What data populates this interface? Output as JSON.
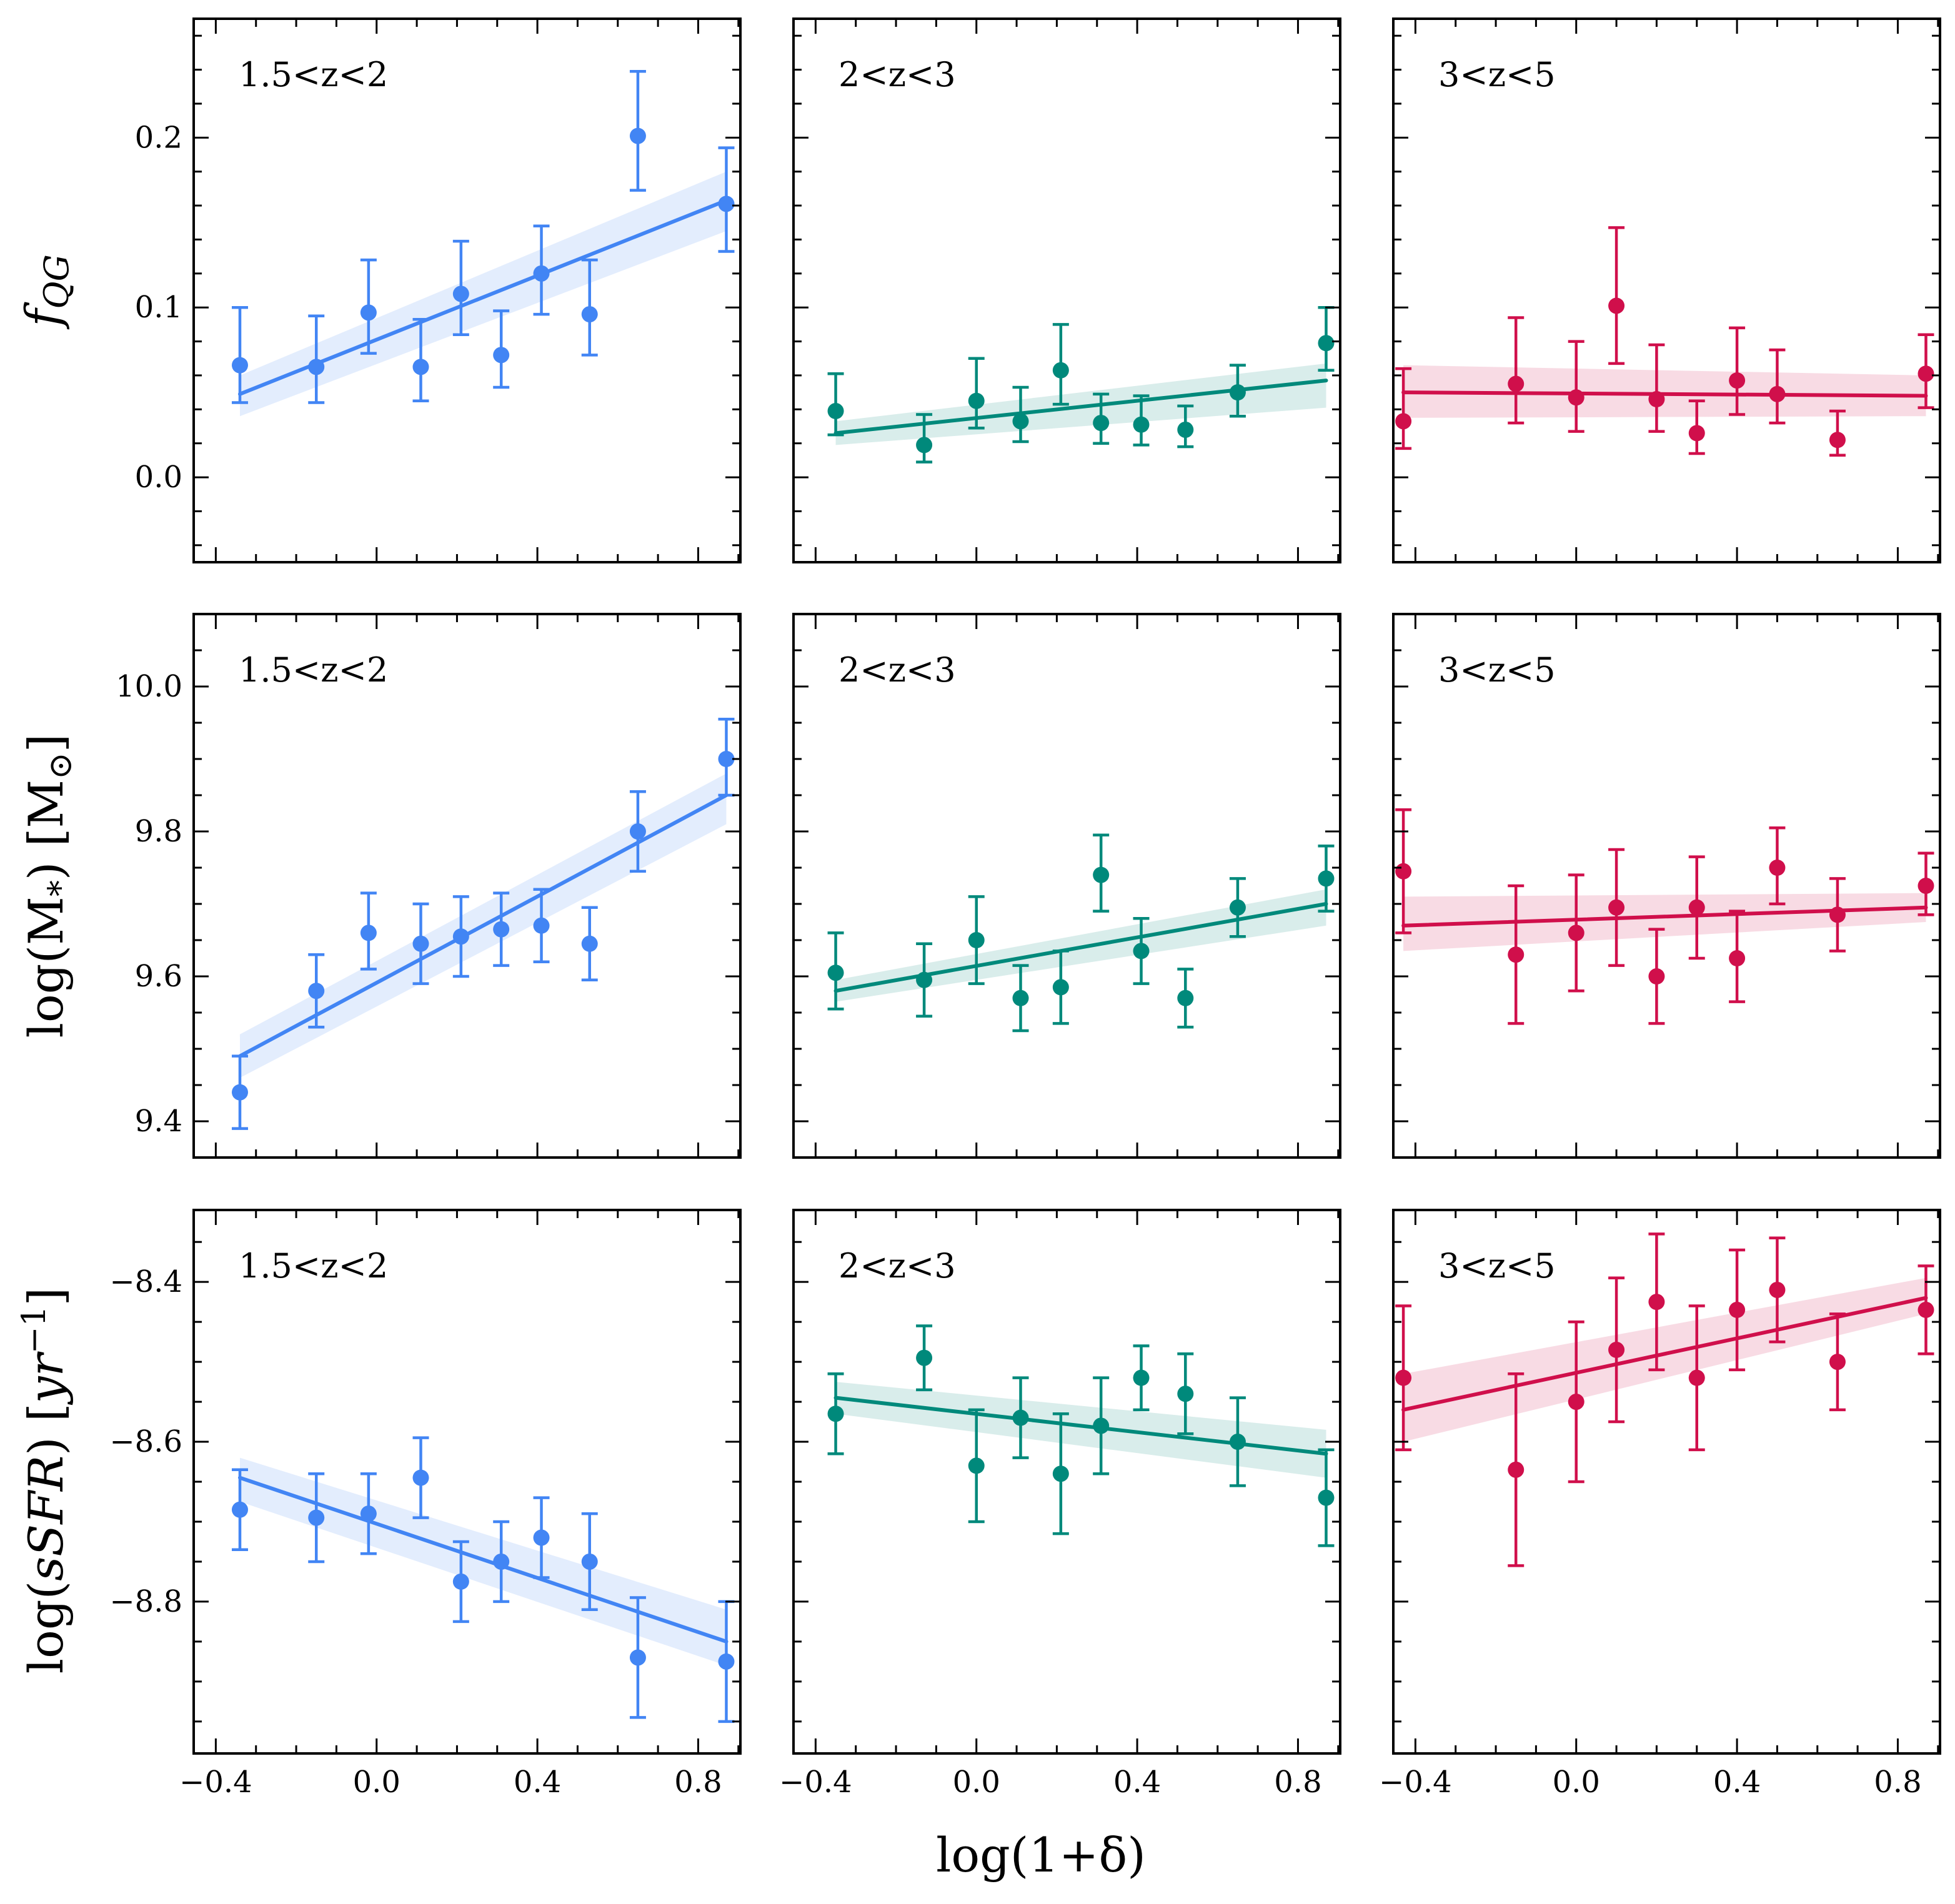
{
  "chart_data": {
    "type": "scatter",
    "layout": "3x3 grid, rows share y-axis, columns share x-axis",
    "xlabel": "log(1+δ)",
    "x_ticks": [
      "−0.4",
      "0.0",
      "0.4",
      "0.8"
    ],
    "xlim": [
      -0.455,
      0.905
    ],
    "colors": {
      "1.5<z<2": "#4285f4",
      "2<z<3": "#00897b",
      "3<z<5": "#d00f4b"
    },
    "rows": [
      {
        "ylabel": "f_QG",
        "ylim": [
          -0.05,
          0.27
        ],
        "y_ticks": [
          "0.0",
          "0.1",
          "0.2"
        ],
        "panels": [
          {
            "label": "1.5<z<2",
            "color": "#4285f4",
            "x": [
              -0.34,
              -0.15,
              -0.02,
              0.11,
              0.21,
              0.31,
              0.41,
              0.53,
              0.65,
              0.87
            ],
            "y": [
              0.066,
              0.065,
              0.097,
              0.065,
              0.108,
              0.072,
              0.12,
              0.096,
              0.201,
              0.161
            ],
            "yerr_low": [
              0.022,
              0.021,
              0.024,
              0.02,
              0.024,
              0.019,
              0.024,
              0.024,
              0.032,
              0.028
            ],
            "yerr_high": [
              0.034,
              0.03,
              0.031,
              0.028,
              0.031,
              0.026,
              0.028,
              0.032,
              0.038,
              0.033
            ],
            "fit": {
              "x": [
                -0.34,
                0.87
              ],
              "y": [
                0.049,
                0.163
              ],
              "band_low": [
                0.036,
                0.145
              ],
              "band_high": [
                0.06,
                0.18
              ]
            }
          },
          {
            "label": "2<z<3",
            "color": "#00897b",
            "x": [
              -0.35,
              -0.13,
              0.0,
              0.11,
              0.21,
              0.31,
              0.41,
              0.52,
              0.65,
              0.87
            ],
            "y": [
              0.039,
              0.019,
              0.045,
              0.033,
              0.063,
              0.032,
              0.031,
              0.028,
              0.05,
              0.079
            ],
            "yerr_low": [
              0.014,
              0.01,
              0.016,
              0.012,
              0.02,
              0.012,
              0.012,
              0.01,
              0.014,
              0.016
            ],
            "yerr_high": [
              0.022,
              0.018,
              0.025,
              0.02,
              0.027,
              0.017,
              0.017,
              0.014,
              0.016,
              0.021
            ],
            "fit": {
              "x": [
                -0.35,
                0.87
              ],
              "y": [
                0.026,
                0.057
              ],
              "band_low": [
                0.019,
                0.041
              ],
              "band_high": [
                0.033,
                0.067
              ]
            }
          },
          {
            "label": "3<z<5",
            "color": "#d00f4b",
            "x": [
              -0.43,
              -0.15,
              0.0,
              0.1,
              0.2,
              0.3,
              0.4,
              0.5,
              0.65,
              0.87
            ],
            "y": [
              0.033,
              0.055,
              0.047,
              0.101,
              0.046,
              0.026,
              0.057,
              0.049,
              0.022,
              0.061
            ],
            "yerr_low": [
              0.016,
              0.023,
              0.02,
              0.034,
              0.019,
              0.012,
              0.02,
              0.017,
              0.009,
              0.02
            ],
            "yerr_high": [
              0.031,
              0.039,
              0.033,
              0.046,
              0.032,
              0.019,
              0.031,
              0.026,
              0.017,
              0.023
            ],
            "fit": {
              "x": [
                -0.43,
                0.87
              ],
              "y": [
                0.05,
                0.048
              ],
              "band_low": [
                0.035,
                0.036
              ],
              "band_high": [
                0.066,
                0.06
              ]
            }
          }
        ]
      },
      {
        "ylabel": "log(M*) [M⊙]",
        "ylim": [
          9.35,
          10.1
        ],
        "y_ticks": [
          "9.4",
          "9.6",
          "9.8",
          "10.0"
        ],
        "panels": [
          {
            "label": "1.5<z<2",
            "color": "#4285f4",
            "x": [
              -0.34,
              -0.15,
              -0.02,
              0.11,
              0.21,
              0.31,
              0.41,
              0.53,
              0.65,
              0.87
            ],
            "y": [
              9.44,
              9.58,
              9.66,
              9.645,
              9.655,
              9.665,
              9.67,
              9.645,
              9.8,
              9.9
            ],
            "yerr_low": [
              0.05,
              0.05,
              0.05,
              0.055,
              0.055,
              0.05,
              0.05,
              0.05,
              0.055,
              0.05
            ],
            "yerr_high": [
              0.05,
              0.05,
              0.055,
              0.055,
              0.055,
              0.05,
              0.05,
              0.05,
              0.055,
              0.055
            ],
            "fit": {
              "x": [
                -0.34,
                0.87
              ],
              "y": [
                9.49,
                9.85
              ],
              "band_low": [
                9.46,
                9.81
              ],
              "band_high": [
                9.52,
                9.88
              ]
            }
          },
          {
            "label": "2<z<3",
            "color": "#00897b",
            "x": [
              -0.35,
              -0.13,
              0.0,
              0.11,
              0.21,
              0.31,
              0.41,
              0.52,
              0.65,
              0.87
            ],
            "y": [
              9.605,
              9.595,
              9.65,
              9.57,
              9.585,
              9.74,
              9.635,
              9.57,
              9.695,
              9.735
            ],
            "yerr_low": [
              0.05,
              0.05,
              0.06,
              0.045,
              0.05,
              0.05,
              0.045,
              0.04,
              0.04,
              0.045
            ],
            "yerr_high": [
              0.055,
              0.05,
              0.06,
              0.045,
              0.05,
              0.055,
              0.045,
              0.04,
              0.04,
              0.045
            ],
            "fit": {
              "x": [
                -0.35,
                0.87
              ],
              "y": [
                9.58,
                9.7
              ],
              "band_low": [
                9.565,
                9.67
              ],
              "band_high": [
                9.595,
                9.72
              ]
            }
          },
          {
            "label": "3<z<5",
            "color": "#d00f4b",
            "x": [
              -0.43,
              -0.15,
              0.0,
              0.1,
              0.2,
              0.3,
              0.4,
              0.5,
              0.65,
              0.87
            ],
            "y": [
              9.745,
              9.63,
              9.66,
              9.695,
              9.6,
              9.695,
              9.625,
              9.75,
              9.685,
              9.725
            ],
            "yerr_low": [
              0.085,
              0.095,
              0.08,
              0.08,
              0.065,
              0.07,
              0.06,
              0.05,
              0.05,
              0.04
            ],
            "yerr_high": [
              0.085,
              0.095,
              0.08,
              0.08,
              0.065,
              0.07,
              0.065,
              0.055,
              0.05,
              0.045
            ],
            "fit": {
              "x": [
                -0.43,
                0.87
              ],
              "y": [
                9.67,
                9.695
              ],
              "band_low": [
                9.635,
                9.675
              ],
              "band_high": [
                9.71,
                9.715
              ]
            }
          }
        ]
      },
      {
        "ylabel": "log(sSFR) [yr⁻¹]",
        "ylim": [
          -8.99,
          -8.31
        ],
        "y_ticks": [
          "−8.4",
          "−8.6",
          "−8.8"
        ],
        "panels": [
          {
            "label": "1.5<z<2",
            "color": "#4285f4",
            "x": [
              -0.34,
              -0.15,
              -0.02,
              0.11,
              0.21,
              0.31,
              0.41,
              0.53,
              0.65,
              0.87
            ],
            "y": [
              -8.685,
              -8.695,
              -8.69,
              -8.645,
              -8.775,
              -8.75,
              -8.72,
              -8.75,
              -8.87,
              -8.875
            ],
            "yerr_low": [
              0.05,
              0.055,
              0.05,
              0.05,
              0.05,
              0.05,
              0.05,
              0.06,
              0.075,
              0.075
            ],
            "yerr_high": [
              0.05,
              0.055,
              0.05,
              0.05,
              0.05,
              0.05,
              0.05,
              0.06,
              0.075,
              0.075
            ],
            "fit": {
              "x": [
                -0.34,
                0.87
              ],
              "y": [
                -8.645,
                -8.85
              ],
              "band_low": [
                -8.675,
                -8.88
              ],
              "band_high": [
                -8.62,
                -8.81
              ]
            }
          },
          {
            "label": "2<z<3",
            "color": "#00897b",
            "x": [
              -0.35,
              -0.13,
              0.0,
              0.11,
              0.21,
              0.31,
              0.41,
              0.52,
              0.65,
              0.87
            ],
            "y": [
              -8.565,
              -8.495,
              -8.63,
              -8.57,
              -8.64,
              -8.58,
              -8.52,
              -8.54,
              -8.6,
              -8.67
            ],
            "yerr_low": [
              0.05,
              0.04,
              0.07,
              0.05,
              0.075,
              0.06,
              0.04,
              0.05,
              0.055,
              0.06
            ],
            "yerr_high": [
              0.05,
              0.04,
              0.07,
              0.05,
              0.075,
              0.06,
              0.04,
              0.05,
              0.055,
              0.06
            ],
            "fit": {
              "x": [
                -0.35,
                0.87
              ],
              "y": [
                -8.545,
                -8.615
              ],
              "band_low": [
                -8.565,
                -8.645
              ],
              "band_high": [
                -8.525,
                -8.585
              ]
            }
          },
          {
            "label": "3<z<5",
            "color": "#d00f4b",
            "x": [
              -0.43,
              -0.15,
              0.0,
              0.1,
              0.2,
              0.3,
              0.4,
              0.5,
              0.65,
              0.87
            ],
            "y": [
              -8.52,
              -8.635,
              -8.55,
              -8.485,
              -8.425,
              -8.52,
              -8.435,
              -8.41,
              -8.5,
              -8.435
            ],
            "yerr_low": [
              0.09,
              0.12,
              0.1,
              0.09,
              0.085,
              0.09,
              0.075,
              0.065,
              0.06,
              0.055
            ],
            "yerr_high": [
              0.09,
              0.12,
              0.1,
              0.09,
              0.085,
              0.09,
              0.075,
              0.065,
              0.06,
              0.055
            ],
            "fit": {
              "x": [
                -0.43,
                0.87
              ],
              "y": [
                -8.56,
                -8.42
              ],
              "band_low": [
                -8.6,
                -8.44
              ],
              "band_high": [
                -8.515,
                -8.395
              ]
            }
          }
        ]
      }
    ]
  }
}
